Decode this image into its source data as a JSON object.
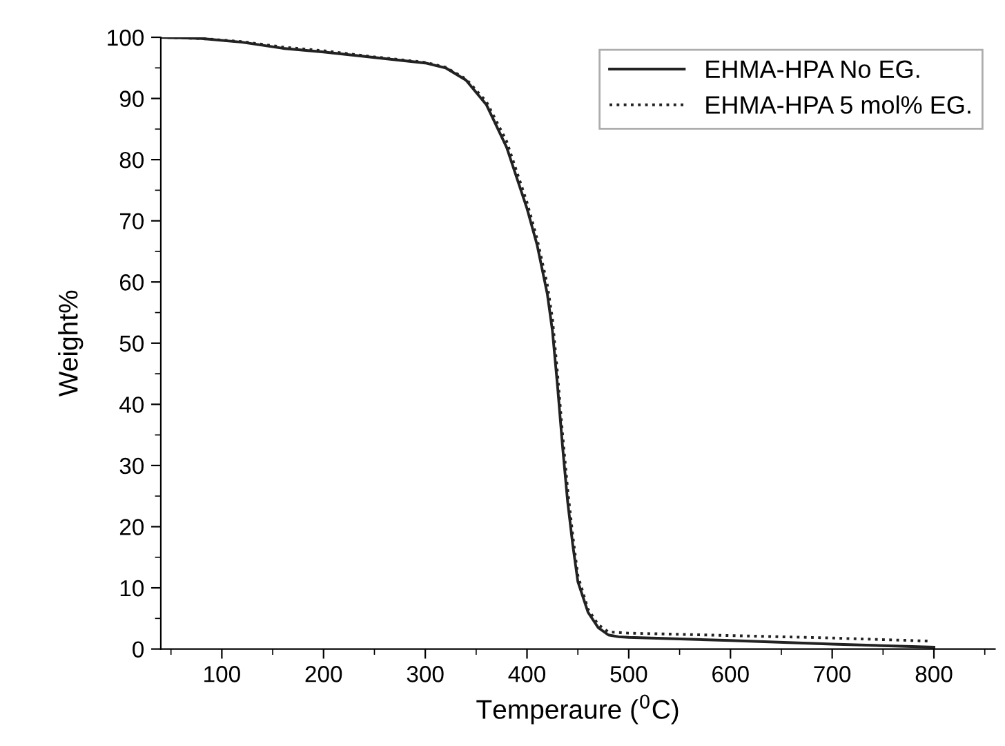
{
  "chart_data": {
    "type": "line",
    "xlabel": "Temperaure ($^{0}$C)",
    "ylabel": "Weight%",
    "xlim": [
      40,
      860
    ],
    "ylim": [
      0,
      100
    ],
    "xticks": [
      {
        "value": 50,
        "label": null
      },
      100,
      {
        "value": 150,
        "label": null
      },
      200,
      {
        "value": 250,
        "label": null
      },
      300,
      {
        "value": 350,
        "label": null
      },
      400,
      {
        "value": 450,
        "label": null
      },
      500,
      {
        "value": 550,
        "label": null
      },
      600,
      {
        "value": 650,
        "label": null
      },
      700,
      {
        "value": 750,
        "label": null
      },
      800,
      {
        "value": 850,
        "label": null
      }
    ],
    "yticks": [
      0,
      {
        "value": 5,
        "label": null
      },
      10,
      {
        "value": 15,
        "label": null
      },
      20,
      {
        "value": 25,
        "label": null
      },
      30,
      {
        "value": 35,
        "label": null
      },
      40,
      {
        "value": 45,
        "label": null
      },
      50,
      {
        "value": 55,
        "label": null
      },
      60,
      {
        "value": 65,
        "label": null
      },
      70,
      {
        "value": 75,
        "label": null
      },
      80,
      {
        "value": 85,
        "label": null
      },
      90,
      {
        "value": 95,
        "label": null
      },
      100
    ],
    "grid": false,
    "legend": "top right",
    "marker": "none",
    "series": [
      {
        "name": "EHMA-HPA No EG.",
        "color": "#222222",
        "line_style": "solid",
        "x": [
          40,
          80,
          120,
          160,
          200,
          250,
          300,
          320,
          340,
          360,
          380,
          400,
          410,
          420,
          425,
          430,
          435,
          440,
          445,
          450,
          460,
          470,
          480,
          490,
          500,
          600,
          700,
          800
        ],
        "values": [
          100,
          99.8,
          99.2,
          98.2,
          97.6,
          96.7,
          95.8,
          95.0,
          93,
          89,
          82,
          72,
          66,
          58,
          52,
          43,
          33,
          24,
          17,
          11,
          6,
          3.5,
          2.3,
          2.0,
          1.9,
          1.4,
          0.8,
          0.3
        ]
      },
      {
        "name": "EHMA-HPA 5 mol% EG.",
        "color": "#222222",
        "line_style": "dotted",
        "x": [
          40,
          80,
          120,
          160,
          200,
          250,
          300,
          320,
          340,
          360,
          380,
          400,
          410,
          420,
          425,
          430,
          435,
          440,
          445,
          450,
          460,
          470,
          480,
          490,
          500,
          600,
          700,
          795
        ],
        "values": [
          100,
          99.8,
          99.3,
          98.4,
          97.8,
          96.8,
          95.9,
          95.1,
          93.2,
          89.5,
          83,
          73,
          67,
          59.5,
          54,
          45,
          35,
          26,
          18.5,
          12,
          6.5,
          4,
          2.8,
          2.7,
          2.6,
          2.2,
          1.8,
          1.3
        ]
      }
    ]
  }
}
